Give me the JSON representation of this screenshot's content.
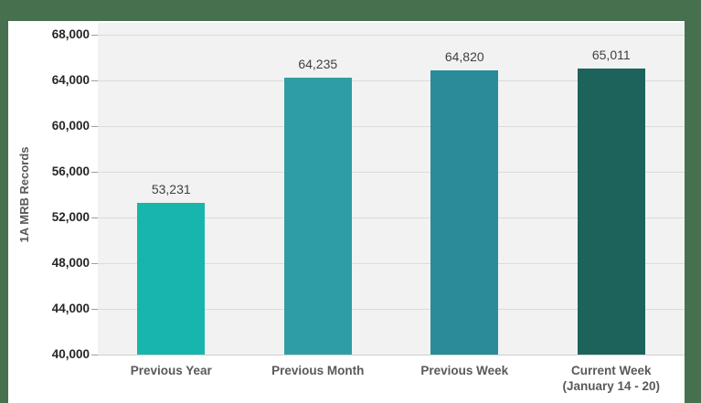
{
  "chart_data": {
    "type": "bar",
    "title": "",
    "ylabel": "1A MRB Records",
    "xlabel": "",
    "categories": [
      {
        "label": "Previous Year",
        "sublabel": ""
      },
      {
        "label": "Previous Month",
        "sublabel": ""
      },
      {
        "label": "Previous Week",
        "sublabel": ""
      },
      {
        "label": "Current Week",
        "sublabel": "(January 14 - 20)"
      }
    ],
    "values": [
      53231,
      64235,
      64820,
      65011
    ],
    "value_labels": [
      "53,231",
      "64,235",
      "64,820",
      "65,011"
    ],
    "bar_colors": [
      "#18B5AC",
      "#2F9EA4",
      "#2A8C98",
      "#1D635B"
    ],
    "ylim": [
      40000,
      68000
    ],
    "ytick_values": [
      68000,
      64000,
      60000,
      56000,
      52000,
      48000,
      44000,
      40000
    ],
    "ytick_labels": [
      "68,000",
      "64,000",
      "60,000",
      "56,000",
      "52,000",
      "48,000",
      "44,000",
      "40,000"
    ],
    "grid": true,
    "legend": "none",
    "colors": {
      "page_background": "#47704F",
      "panel_background": "#FFFFFF",
      "plot_background": "#F2F2F2",
      "gridline": "#DBDBDB",
      "tick_mark": "#9E9E9E",
      "ytick_text": "#262626",
      "xtick_text": "#595959",
      "value_label_text": "#404040",
      "ylabel_text": "#595959"
    }
  }
}
